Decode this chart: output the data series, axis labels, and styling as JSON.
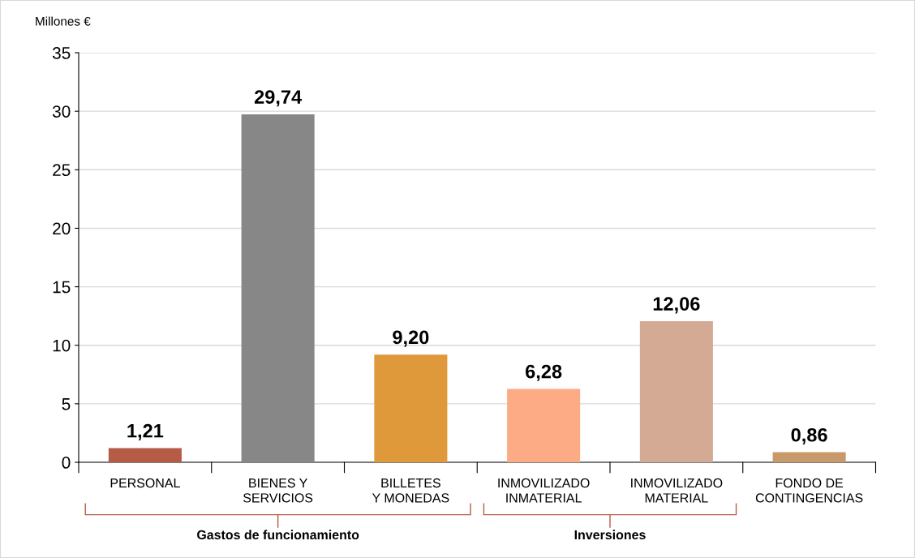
{
  "chart_data": {
    "type": "bar",
    "ylabel": "Millones €",
    "categories": [
      "PERSONAL",
      "BIENES Y\nSERVICIOS",
      "BILLETES\nY MONEDAS",
      "INMOVILIZADO\nINMATERIAL",
      "INMOVILIZADO\nMATERIAL",
      "FONDO DE\nCONTINGENCIAS"
    ],
    "values": [
      1.21,
      29.74,
      9.2,
      6.28,
      12.06,
      0.86
    ],
    "value_labels": [
      "1,21",
      "29,74",
      "9,20",
      "6,28",
      "12,06",
      "0,86"
    ],
    "colors": [
      "#b65c46",
      "#878787",
      "#e0993a",
      "#fcab85",
      "#d4aa95",
      "#c8996b"
    ],
    "ylim": [
      0,
      35
    ],
    "yticks": [
      0,
      5,
      10,
      15,
      20,
      25,
      30,
      35
    ],
    "grid": "y",
    "annotations": [
      "Gastos de funcionamiento",
      "Inversiones"
    ]
  }
}
